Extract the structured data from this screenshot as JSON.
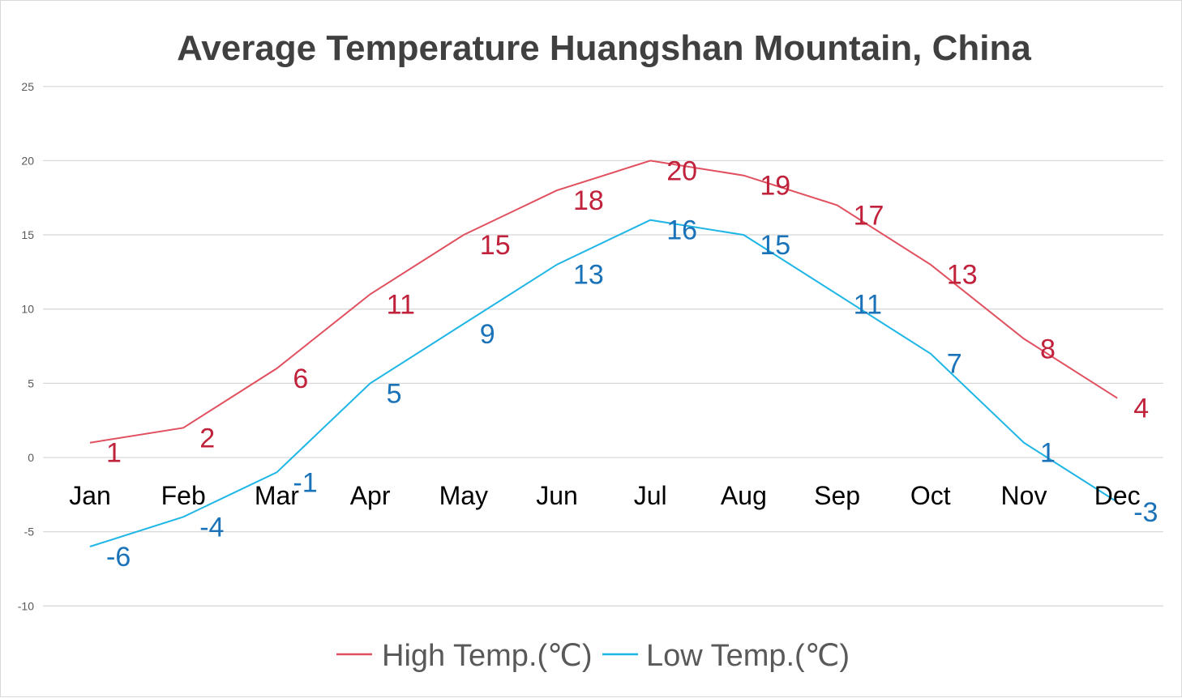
{
  "chart_data": {
    "type": "line",
    "title": "Average Temperature Huangshan Mountain, China",
    "categories": [
      "Jan",
      "Feb",
      "Mar",
      "Apr",
      "May",
      "Jun",
      "Jul",
      "Aug",
      "Sep",
      "Oct",
      "Nov",
      "Dec"
    ],
    "series": [
      {
        "name": "High Temp.(℃)",
        "color": "#e0505f",
        "label_color": "#c0223b",
        "values": [
          1,
          2,
          6,
          11,
          15,
          18,
          20,
          19,
          17,
          13,
          8,
          4
        ]
      },
      {
        "name": "Low Temp.(℃)",
        "color": "#1fb6e6",
        "label_color": "#1a72b8",
        "values": [
          -6,
          -4,
          -1,
          5,
          9,
          13,
          16,
          15,
          11,
          7,
          1,
          -3
        ]
      }
    ],
    "yticks": [
      "25",
      "20",
      "15",
      "10",
      "5",
      "0",
      "-5",
      "-10"
    ],
    "ylim": [
      -10,
      25
    ],
    "grid": true,
    "legend": "bottom",
    "xlabel": "",
    "ylabel": ""
  }
}
